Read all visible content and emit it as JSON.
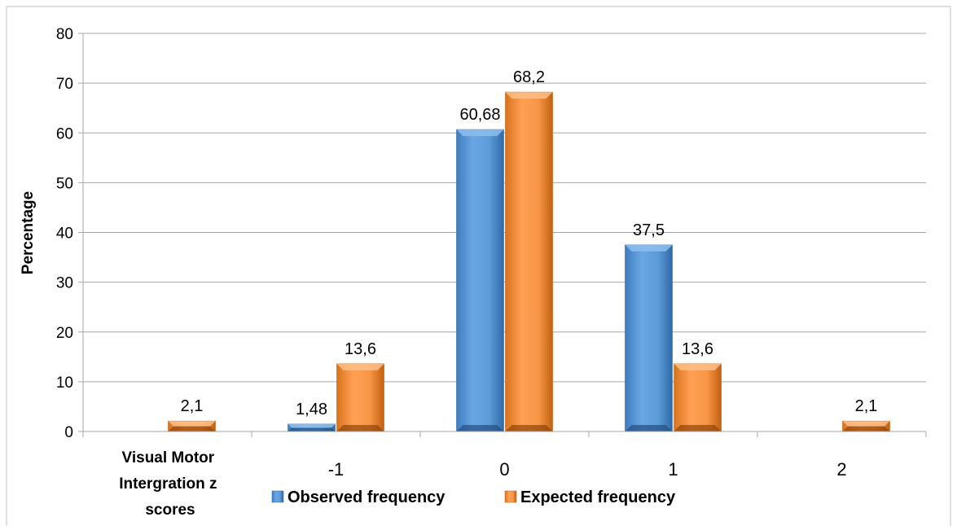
{
  "chart_data": {
    "type": "bar",
    "categories": [
      "Visual Motor Intergration z scores",
      "-1",
      "0",
      "1",
      "2"
    ],
    "series": [
      {
        "name": "Observed frequency",
        "values": [
          null,
          1.48,
          60.68,
          37.5,
          null
        ],
        "labels": [
          "",
          "1,48",
          "60,68",
          "37,5",
          ""
        ],
        "color": "#5b9bd5"
      },
      {
        "name": "Expected frequency",
        "values": [
          2.1,
          13.6,
          68.2,
          13.6,
          2.1
        ],
        "labels": [
          "2,1",
          "13,6",
          "68,2",
          "13,6",
          "2,1"
        ],
        "color": "#f79646"
      }
    ],
    "ylabel": "Percentage",
    "ylim": [
      0,
      80
    ],
    "yticks": [
      0,
      10,
      20,
      30,
      40,
      50,
      60,
      70,
      80
    ],
    "grid": true,
    "legend_position": "bottom"
  },
  "x_label_lines": [
    "Visual Motor",
    "Intergration z",
    "scores"
  ]
}
